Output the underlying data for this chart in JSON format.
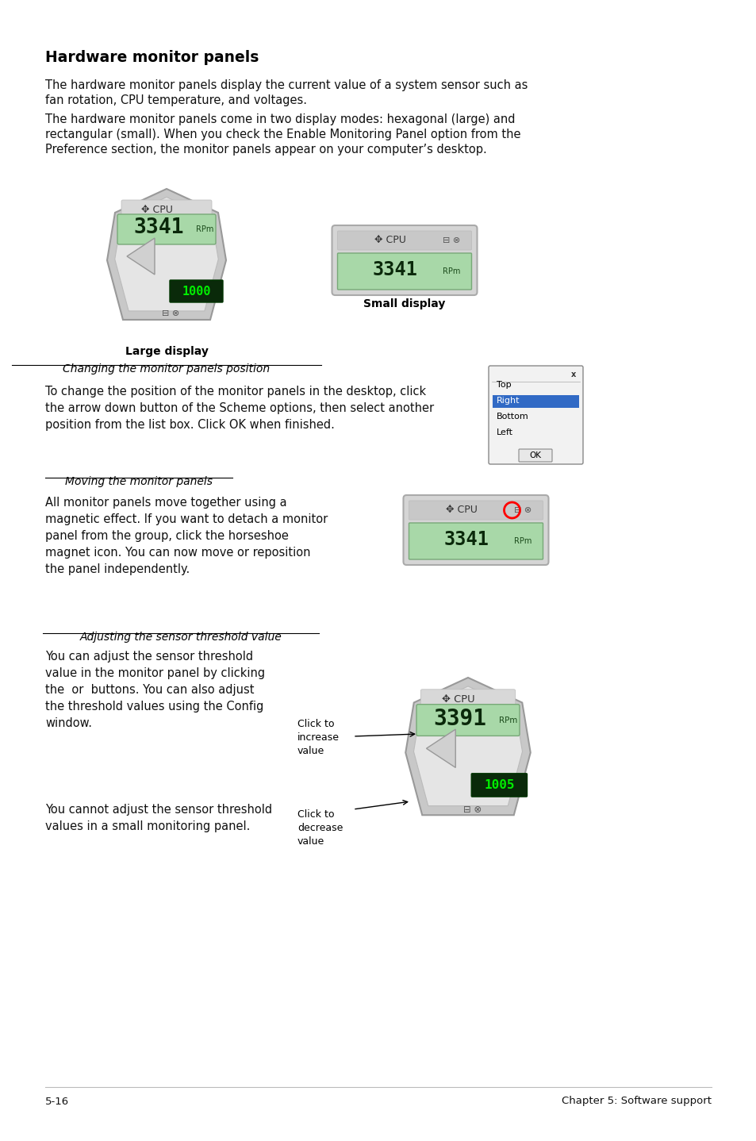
{
  "bg": "#ffffff",
  "footer_left": "5-16",
  "footer_right": "Chapter 5: Software support",
  "title": "Hardware monitor panels",
  "para1_line1": "The hardware monitor panels display the current value of a system sensor such as",
  "para1_line2": "fan rotation, CPU temperature, and voltages.",
  "para2_line1": "The hardware monitor panels come in two display modes: hexagonal (large) and",
  "para2_line2": "rectangular (small). When you check the Enable Monitoring Panel option from the",
  "para2_line3": "Preference section, the monitor panels appear on your computer’s desktop.",
  "large_display_label": "Large display",
  "small_display_label": "Small display",
  "s1_title": "Changing the monitor panels position",
  "s1_text": "To change the position of the monitor panels in the desktop, click\nthe arrow down button of the Scheme options, then select another\nposition from the list box. Click OK when finished.",
  "s2_title": "Moving the monitor panels",
  "s2_text": "All monitor panels move together using a\nmagnetic effect. If you want to detach a monitor\npanel from the group, click the horseshoe\nmagnet icon. You can now move or reposition\nthe panel independently.",
  "s3_title": "Adjusting the sensor threshold value",
  "s3_text1": "You can adjust the sensor threshold\nvalue in the monitor panel by clicking\nthe  or  buttons. You can also adjust\nthe threshold values using the Config\nwindow.",
  "s3_text2": "You cannot adjust the sensor threshold\nvalues in a small monitoring panel.",
  "click_increase": "Click to\nincrease\nvalue",
  "click_decrease": "Click to\ndecrease\nvalue",
  "position_items": [
    "Top",
    "Right",
    "Bottom",
    "Left"
  ],
  "selected_item": 1
}
